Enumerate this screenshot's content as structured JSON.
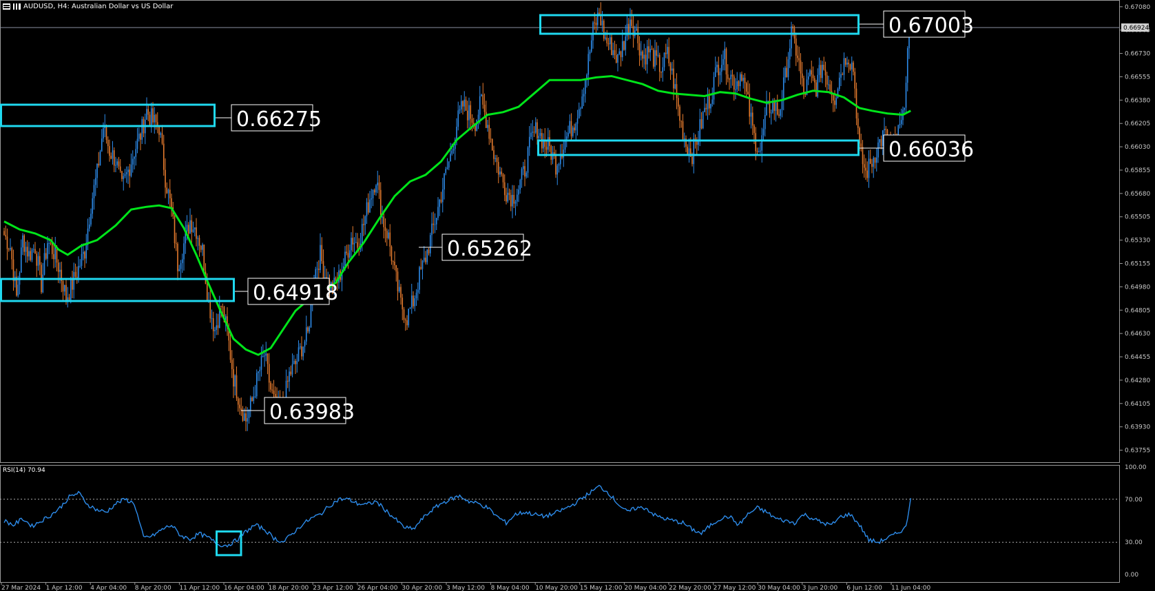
{
  "header": {
    "symbol_info": "AUDUSD, H4:  Australian Dollar vs US Dollar",
    "icons": [
      "table-icon",
      "bar-chart-icon"
    ]
  },
  "colors": {
    "background": "#000000",
    "bull": "#2d8ceb",
    "bear": "#e57b2e",
    "ma": "#00e51a",
    "levels": "#1fd9f0",
    "axis_text": "#c8c8c8",
    "rsi": "#2d8ceb"
  },
  "chart_data": [
    {
      "type": "candlestick",
      "title": "AUDUSD, H4:  Australian Dollar vs US Dollar",
      "y_ticks": [
        "0.67080",
        "0.66905",
        "0.66730",
        "0.66555",
        "0.66380",
        "0.66205",
        "0.66030",
        "0.65855",
        "0.65680",
        "0.65505",
        "0.65330",
        "0.65155",
        "0.64980",
        "0.64805",
        "0.64630",
        "0.64455",
        "0.64280",
        "0.64105",
        "0.63930",
        "0.63755"
      ],
      "ylim": [
        0.6367,
        0.6711
      ],
      "x_ticks": [
        "27 Mar 2024",
        "1 Apr 12:00",
        "4 Apr 04:00",
        "8 Apr 20:00",
        "11 Apr 12:00",
        "16 Apr 04:00",
        "18 Apr 20:00",
        "23 Apr 12:00",
        "26 Apr 04:00",
        "30 Apr 20:00",
        "3 May 12:00",
        "8 May 04:00",
        "10 May 20:00",
        "15 May 12:00",
        "20 May 04:00",
        "22 May 20:00",
        "27 May 12:00",
        "30 May 04:00",
        "3 Jun 20:00",
        "6 Jun 12:00",
        "11 Jun 04:00"
      ],
      "current_price": "0.66924",
      "price_path": [
        [
          0,
          0.6537
        ],
        [
          4,
          0.6528
        ],
        [
          8,
          0.649
        ],
        [
          12,
          0.6534
        ],
        [
          16,
          0.6522
        ],
        [
          20,
          0.6528
        ],
        [
          24,
          0.65
        ],
        [
          28,
          0.6532
        ],
        [
          32,
          0.6524
        ],
        [
          36,
          0.651
        ],
        [
          40,
          0.649
        ],
        [
          44,
          0.65
        ],
        [
          48,
          0.6512
        ],
        [
          52,
          0.6525
        ],
        [
          56,
          0.656
        ],
        [
          60,
          0.6583
        ],
        [
          64,
          0.6618
        ],
        [
          68,
          0.66
        ],
        [
          72,
          0.6593
        ],
        [
          76,
          0.6572
        ],
        [
          80,
          0.6585
        ],
        [
          84,
          0.66
        ],
        [
          88,
          0.6612
        ],
        [
          92,
          0.663
        ],
        [
          96,
          0.6622
        ],
        [
          100,
          0.6618
        ],
        [
          104,
          0.658
        ],
        [
          108,
          0.6555
        ],
        [
          112,
          0.6515
        ],
        [
          116,
          0.653
        ],
        [
          120,
          0.6548
        ],
        [
          124,
          0.6541
        ],
        [
          128,
          0.6525
        ],
        [
          132,
          0.6486
        ],
        [
          136,
          0.6466
        ],
        [
          140,
          0.6484
        ],
        [
          144,
          0.6464
        ],
        [
          148,
          0.643
        ],
        [
          152,
          0.6412
        ],
        [
          156,
          0.6398
        ],
        [
          160,
          0.6412
        ],
        [
          164,
          0.6432
        ],
        [
          168,
          0.6447
        ],
        [
          172,
          0.6421
        ],
        [
          176,
          0.6405
        ],
        [
          180,
          0.6408
        ],
        [
          184,
          0.6432
        ],
        [
          188,
          0.644
        ],
        [
          192,
          0.6453
        ],
        [
          196,
          0.6462
        ],
        [
          200,
          0.6507
        ],
        [
          204,
          0.6522
        ],
        [
          208,
          0.6502
        ],
        [
          212,
          0.6496
        ],
        [
          216,
          0.6505
        ],
        [
          220,
          0.6518
        ],
        [
          224,
          0.6535
        ],
        [
          228,
          0.653
        ],
        [
          232,
          0.6545
        ],
        [
          236,
          0.6565
        ],
        [
          240,
          0.658
        ],
        [
          244,
          0.655
        ],
        [
          248,
          0.6535
        ],
        [
          252,
          0.6508
        ],
        [
          256,
          0.6485
        ],
        [
          260,
          0.6475
        ],
        [
          264,
          0.6487
        ],
        [
          268,
          0.6506
        ],
        [
          272,
          0.652
        ],
        [
          276,
          0.6538
        ],
        [
          280,
          0.6557
        ],
        [
          284,
          0.6578
        ],
        [
          288,
          0.6596
        ],
        [
          292,
          0.662
        ],
        [
          296,
          0.6634
        ],
        [
          300,
          0.6628
        ],
        [
          304,
          0.6622
        ],
        [
          308,
          0.6637
        ],
        [
          312,
          0.662
        ],
        [
          316,
          0.6598
        ],
        [
          320,
          0.6583
        ],
        [
          324,
          0.657
        ],
        [
          328,
          0.6565
        ],
        [
          332,
          0.6572
        ],
        [
          336,
          0.6586
        ],
        [
          340,
          0.6608
        ],
        [
          344,
          0.6617
        ],
        [
          348,
          0.6606
        ],
        [
          352,
          0.6602
        ],
        [
          356,
          0.659
        ],
        [
          360,
          0.6602
        ],
        [
          364,
          0.6613
        ],
        [
          368,
          0.6622
        ],
        [
          372,
          0.6638
        ],
        [
          376,
          0.666
        ],
        [
          380,
          0.669
        ],
        [
          384,
          0.6703
        ],
        [
          388,
          0.6683
        ],
        [
          392,
          0.6678
        ],
        [
          396,
          0.6668
        ],
        [
          400,
          0.6682
        ],
        [
          404,
          0.67
        ],
        [
          408,
          0.6688
        ],
        [
          412,
          0.667
        ],
        [
          416,
          0.6675
        ],
        [
          420,
          0.6668
        ],
        [
          424,
          0.6662
        ],
        [
          428,
          0.6672
        ],
        [
          432,
          0.6652
        ],
        [
          436,
          0.6625
        ],
        [
          440,
          0.6605
        ],
        [
          444,
          0.6598
        ],
        [
          448,
          0.6612
        ],
        [
          452,
          0.663
        ],
        [
          456,
          0.6641
        ],
        [
          460,
          0.6662
        ],
        [
          464,
          0.6672
        ],
        [
          468,
          0.6658
        ],
        [
          472,
          0.665
        ],
        [
          476,
          0.666
        ],
        [
          480,
          0.6635
        ],
        [
          484,
          0.661
        ],
        [
          488,
          0.66
        ],
        [
          492,
          0.663
        ],
        [
          496,
          0.6635
        ],
        [
          500,
          0.6628
        ],
        [
          504,
          0.6655
        ],
        [
          508,
          0.6688
        ],
        [
          512,
          0.6672
        ],
        [
          516,
          0.6642
        ],
        [
          520,
          0.6655
        ],
        [
          524,
          0.6648
        ],
        [
          528,
          0.6665
        ],
        [
          532,
          0.6652
        ],
        [
          536,
          0.664
        ],
        [
          540,
          0.666
        ],
        [
          544,
          0.6673
        ],
        [
          548,
          0.6662
        ],
        [
          552,
          0.66
        ],
        [
          556,
          0.6583
        ],
        [
          560,
          0.6592
        ],
        [
          564,
          0.6604
        ],
        [
          568,
          0.6613
        ],
        [
          572,
          0.66
        ],
        [
          576,
          0.661
        ],
        [
          580,
          0.6623
        ],
        [
          584,
          0.6692
        ]
      ],
      "moving_average": [
        [
          0,
          0.6547
        ],
        [
          10,
          0.6541
        ],
        [
          20,
          0.6538
        ],
        [
          30,
          0.6533
        ],
        [
          35,
          0.6526
        ],
        [
          41,
          0.6522
        ],
        [
          50,
          0.6529
        ],
        [
          60,
          0.6533
        ],
        [
          72,
          0.6544
        ],
        [
          82,
          0.6556
        ],
        [
          92,
          0.6558
        ],
        [
          100,
          0.6559
        ],
        [
          108,
          0.6557
        ],
        [
          116,
          0.6542
        ],
        [
          124,
          0.6522
        ],
        [
          132,
          0.65
        ],
        [
          140,
          0.6479
        ],
        [
          148,
          0.6459
        ],
        [
          156,
          0.6451
        ],
        [
          164,
          0.6447
        ],
        [
          172,
          0.6452
        ],
        [
          180,
          0.6466
        ],
        [
          188,
          0.648
        ],
        [
          196,
          0.6488
        ],
        [
          204,
          0.6493
        ],
        [
          214,
          0.6501
        ],
        [
          222,
          0.6516
        ],
        [
          232,
          0.6531
        ],
        [
          242,
          0.6549
        ],
        [
          252,
          0.6566
        ],
        [
          262,
          0.6577
        ],
        [
          272,
          0.6582
        ],
        [
          282,
          0.6592
        ],
        [
          292,
          0.6608
        ],
        [
          302,
          0.6618
        ],
        [
          312,
          0.6627
        ],
        [
          322,
          0.6629
        ],
        [
          332,
          0.6633
        ],
        [
          342,
          0.6643
        ],
        [
          352,
          0.6653
        ],
        [
          362,
          0.6653
        ],
        [
          372,
          0.6653
        ],
        [
          382,
          0.6655
        ],
        [
          392,
          0.6656
        ],
        [
          402,
          0.6653
        ],
        [
          412,
          0.665
        ],
        [
          422,
          0.6645
        ],
        [
          432,
          0.6643
        ],
        [
          442,
          0.6642
        ],
        [
          452,
          0.6641
        ],
        [
          462,
          0.6644
        ],
        [
          472,
          0.6643
        ],
        [
          482,
          0.6639
        ],
        [
          492,
          0.6636
        ],
        [
          502,
          0.6638
        ],
        [
          512,
          0.6642
        ],
        [
          522,
          0.6645
        ],
        [
          532,
          0.6644
        ],
        [
          542,
          0.664
        ],
        [
          552,
          0.6632
        ],
        [
          560,
          0.663
        ],
        [
          570,
          0.6628
        ],
        [
          580,
          0.6627
        ],
        [
          585,
          0.663
        ]
      ],
      "annotations": [
        "0.67003",
        "0.66275",
        "0.66036",
        "0.65262",
        "0.64918",
        "0.63983"
      ]
    },
    {
      "type": "line",
      "title": "RSI(14) 70.94",
      "y_ticks": [
        "100.00",
        "70.00",
        "30.00",
        "0.00"
      ],
      "ylim": [
        0,
        100
      ],
      "levels": [
        70,
        30
      ],
      "series_path": [
        [
          0,
          50
        ],
        [
          6,
          46
        ],
        [
          12,
          52
        ],
        [
          18,
          45
        ],
        [
          24,
          50
        ],
        [
          30,
          55
        ],
        [
          36,
          62
        ],
        [
          42,
          72
        ],
        [
          48,
          76
        ],
        [
          54,
          65
        ],
        [
          60,
          60
        ],
        [
          66,
          58
        ],
        [
          72,
          66
        ],
        [
          78,
          70
        ],
        [
          84,
          66
        ],
        [
          90,
          34
        ],
        [
          96,
          36
        ],
        [
          102,
          42
        ],
        [
          108,
          46
        ],
        [
          114,
          36
        ],
        [
          120,
          33
        ],
        [
          126,
          38
        ],
        [
          132,
          34
        ],
        [
          138,
          28
        ],
        [
          144,
          27
        ],
        [
          150,
          32
        ],
        [
          156,
          40
        ],
        [
          162,
          46
        ],
        [
          168,
          42
        ],
        [
          174,
          34
        ],
        [
          180,
          30
        ],
        [
          186,
          38
        ],
        [
          192,
          46
        ],
        [
          198,
          52
        ],
        [
          204,
          56
        ],
        [
          210,
          64
        ],
        [
          216,
          70
        ],
        [
          222,
          70
        ],
        [
          228,
          66
        ],
        [
          234,
          65
        ],
        [
          240,
          68
        ],
        [
          246,
          60
        ],
        [
          252,
          52
        ],
        [
          258,
          44
        ],
        [
          264,
          42
        ],
        [
          270,
          52
        ],
        [
          276,
          60
        ],
        [
          282,
          66
        ],
        [
          288,
          70
        ],
        [
          294,
          73
        ],
        [
          300,
          68
        ],
        [
          306,
          66
        ],
        [
          312,
          62
        ],
        [
          318,
          54
        ],
        [
          324,
          48
        ],
        [
          330,
          56
        ],
        [
          336,
          58
        ],
        [
          342,
          56
        ],
        [
          348,
          54
        ],
        [
          354,
          56
        ],
        [
          360,
          60
        ],
        [
          366,
          64
        ],
        [
          372,
          70
        ],
        [
          378,
          76
        ],
        [
          384,
          82
        ],
        [
          390,
          76
        ],
        [
          396,
          66
        ],
        [
          402,
          58
        ],
        [
          408,
          62
        ],
        [
          414,
          62
        ],
        [
          420,
          55
        ],
        [
          426,
          52
        ],
        [
          432,
          50
        ],
        [
          438,
          48
        ],
        [
          444,
          42
        ],
        [
          450,
          38
        ],
        [
          456,
          46
        ],
        [
          462,
          52
        ],
        [
          468,
          54
        ],
        [
          474,
          46
        ],
        [
          480,
          56
        ],
        [
          486,
          62
        ],
        [
          492,
          58
        ],
        [
          498,
          52
        ],
        [
          504,
          50
        ],
        [
          510,
          48
        ],
        [
          516,
          56
        ],
        [
          522,
          52
        ],
        [
          528,
          48
        ],
        [
          534,
          46
        ],
        [
          540,
          54
        ],
        [
          546,
          56
        ],
        [
          552,
          46
        ],
        [
          558,
          32
        ],
        [
          564,
          30
        ],
        [
          570,
          34
        ],
        [
          576,
          38
        ],
        [
          582,
          44
        ],
        [
          585,
          71
        ]
      ],
      "highlight_box": [
        138,
        152
      ]
    }
  ]
}
